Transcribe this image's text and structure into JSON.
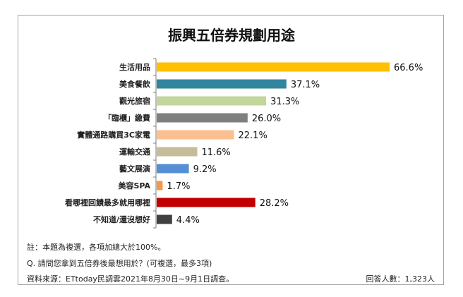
{
  "chart_data": {
    "type": "bar",
    "orientation": "horizontal",
    "title": "振興五倍券規劃用途",
    "categories": [
      "生活用品",
      "美食餐飲",
      "觀光旅宿",
      "「臨櫃」繳費",
      "實體通路購買3C家電",
      "運輸交通",
      "藝文展演",
      "美容SPA",
      "看哪裡回饋最多就用哪裡",
      "不知道/還沒想好"
    ],
    "values": [
      66.6,
      37.1,
      31.3,
      26.0,
      22.1,
      11.6,
      9.2,
      1.7,
      28.2,
      4.4
    ],
    "labels": [
      "66.6%",
      "37.1%",
      "31.3%",
      "26.0%",
      "22.1%",
      "11.6%",
      "9.2%",
      "1.7%",
      "28.2%",
      "4.4%"
    ],
    "colors": [
      "#ffc000",
      "#31859c",
      "#c3d69b",
      "#7f7f7f",
      "#fac090",
      "#c4bd97",
      "#558ed5",
      "#f79646",
      "#c00000",
      "#404040"
    ],
    "unit": "%",
    "grid": false,
    "legend": "none"
  },
  "footer": {
    "note": "註：本題為複選，各項加總大於100%。",
    "question": "Q. 請問您拿到五倍券後最想用於？(可複選，最多3項)",
    "source": "資料來源：ETtoday民調雲2021年8月30日~9月1日調查。",
    "respondents": "回答人數：1,323人"
  }
}
